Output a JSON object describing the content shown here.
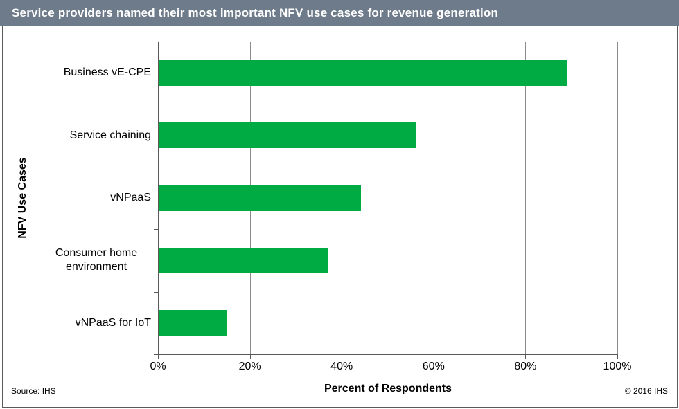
{
  "title_bar": {
    "bg_color": "#6E7B8A",
    "text_color": "#FFFFFF"
  },
  "chart_data": {
    "type": "bar",
    "orientation": "horizontal",
    "title": "Service providers named their most important NFV use cases for revenue generation",
    "categories": [
      "Business vE-CPE",
      "Service chaining",
      "vNPaaS",
      "Consumer home environment",
      "vNPaaS for IoT"
    ],
    "values": [
      89,
      56,
      44,
      37,
      15
    ],
    "unit": "%",
    "xlabel": "Percent of Respondents",
    "ylabel": "NFV Use Cases",
    "xlim": [
      0,
      100
    ],
    "x_ticks": [
      "0%",
      "20%",
      "40%",
      "60%",
      "80%",
      "100%"
    ],
    "grid": true,
    "legend": "none",
    "bar_color": "#00AB44",
    "gridline_color": "#8C8C8C",
    "axis_color": "#595959"
  },
  "footer": {
    "source": "Source: IHS",
    "copyright": "© 2016 IHS"
  }
}
